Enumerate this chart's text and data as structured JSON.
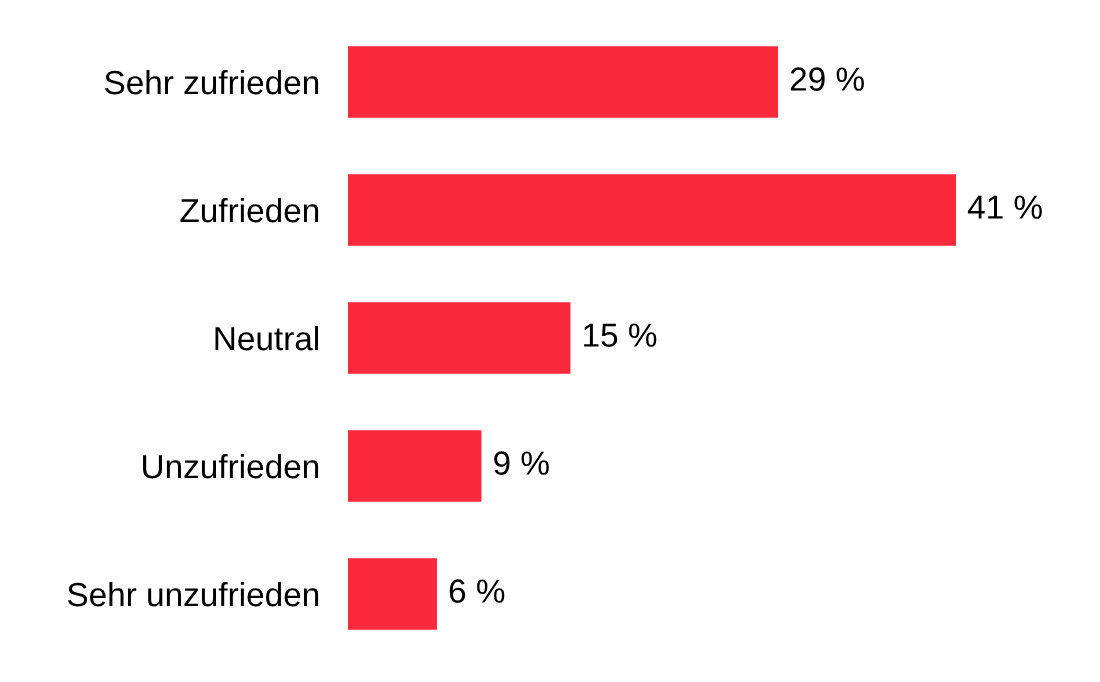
{
  "chart_data": {
    "type": "bar",
    "orientation": "horizontal",
    "categories": [
      "Sehr zufrieden",
      "Zufrieden",
      "Neutral",
      "Unzufrieden",
      "Sehr unzufrieden"
    ],
    "values": [
      29,
      41,
      15,
      9,
      6
    ],
    "value_labels": [
      "29 %",
      "41 %",
      "15 %",
      "9 %",
      "6 %"
    ],
    "color": "#fa2a3c",
    "grid": false,
    "legend": false
  }
}
